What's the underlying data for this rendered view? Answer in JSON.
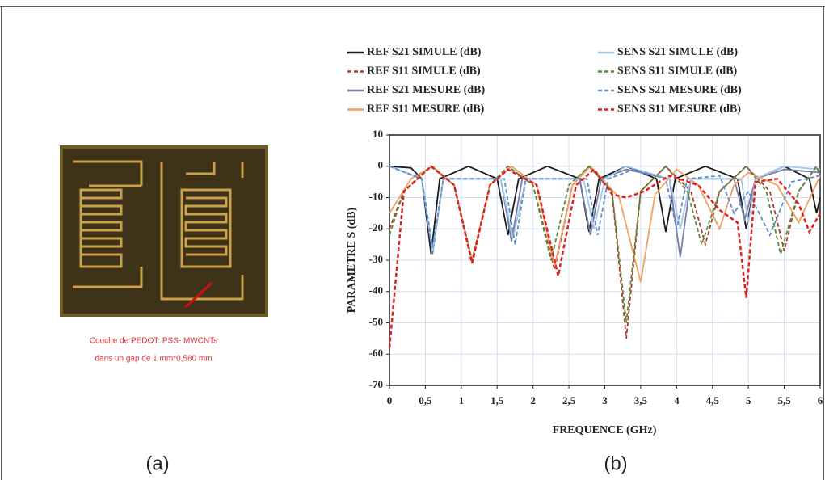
{
  "panel_a": {
    "caption_line1": "Couche  de PEDOT: PSS- MWCNTs",
    "caption_line2": "dans un gap de 1 mm*0,580 mm",
    "label": "(a)"
  },
  "panel_b": {
    "label": "(b)"
  },
  "chart_data": {
    "type": "line",
    "x_label": "FREQUENCE (GHz)",
    "y_label": "PARAMETRE S (dB)",
    "xlim": [
      0,
      6
    ],
    "ylim": [
      -70,
      10
    ],
    "grid": true,
    "xticks": [
      0,
      {
        "value": 0.5,
        "label": "0,5"
      },
      1,
      {
        "value": 1.5,
        "label": "1,5"
      },
      2,
      {
        "value": 2.5,
        "label": "2,5"
      },
      3,
      {
        "value": 3.5,
        "label": "3,5"
      },
      4,
      {
        "value": 4.5,
        "label": "4,5"
      },
      5,
      {
        "value": 5.5,
        "label": "5,5"
      },
      6
    ],
    "yticks": [
      10,
      0,
      -10,
      -20,
      -30,
      -40,
      -50,
      -60,
      -70
    ],
    "series": [
      {
        "name": "REF S21 SIMULE (dB)",
        "color": "#1a1a1a",
        "dashed": false,
        "x": [
          0,
          0.3,
          0.45,
          0.58,
          0.7,
          1.1,
          1.5,
          1.65,
          1.8,
          2.2,
          2.65,
          2.78,
          2.92,
          3.3,
          3.72,
          3.85,
          3.98,
          4.4,
          4.85,
          4.97,
          5.1,
          5.5,
          5.85,
          5.95,
          6
        ],
        "values": [
          0,
          -0.5,
          -4,
          -28,
          -4,
          0,
          -4,
          -22,
          -4,
          0,
          -4,
          -21,
          -4,
          0,
          -4,
          -21,
          -4,
          0,
          -4,
          -20,
          -4,
          0,
          -4,
          -15,
          -10
        ]
      },
      {
        "name": "REF S11 SIMULE (dB)",
        "color": "#b03a2e",
        "dashed": true,
        "x": [
          0,
          0.2,
          0.58,
          0.9,
          1.15,
          1.4,
          1.65,
          2.0,
          2.3,
          2.55,
          2.78,
          3.1,
          3.3,
          3.5,
          3.85,
          4.2,
          4.4,
          4.6,
          4.97,
          5.3,
          5.5,
          5.7,
          5.95,
          6
        ],
        "values": [
          -20,
          -8,
          0,
          -6,
          -31,
          -6,
          0,
          -6,
          -33,
          -6,
          0,
          -8,
          -55,
          -8,
          0,
          -8,
          -25,
          -8,
          0,
          -8,
          -27,
          -8,
          0,
          -3
        ]
      },
      {
        "name": "REF S21 MESURE (dB)",
        "color": "#7a7aa8",
        "dashed": false,
        "x": [
          0,
          0.45,
          0.6,
          0.75,
          1.55,
          1.7,
          1.85,
          2.65,
          2.8,
          2.95,
          3.3,
          3.9,
          4.05,
          4.2,
          4.8,
          4.95,
          5.1,
          5.5,
          6
        ],
        "values": [
          0,
          -4,
          -28,
          -4,
          -4,
          -24,
          -4,
          -4,
          -22,
          -4,
          -1,
          -4,
          -29,
          -4,
          -4,
          -17,
          -4,
          -1,
          -2
        ]
      },
      {
        "name": "REF S11 MESURE (dB)",
        "color": "#f0a060",
        "dashed": false,
        "x": [
          0,
          0.3,
          0.6,
          0.9,
          1.15,
          1.4,
          1.7,
          2.05,
          2.3,
          2.55,
          2.8,
          3.2,
          3.5,
          3.7,
          4.0,
          4.3,
          4.6,
          4.8,
          5.0,
          5.4,
          5.7,
          6
        ],
        "values": [
          -15,
          -4,
          0,
          -6,
          -30,
          -6,
          0,
          -6,
          -32,
          -6,
          0,
          -10,
          -37,
          -9,
          -1,
          -6,
          -20,
          -6,
          -2,
          -6,
          -18,
          -3
        ]
      },
      {
        "name": "SENS S21 SIMULE (dB)",
        "color": "#a8c8e8",
        "dashed": false,
        "x": [
          0,
          0.45,
          0.6,
          0.75,
          1.55,
          1.72,
          1.9,
          2.7,
          2.85,
          3.0,
          3.3,
          3.9,
          4.05,
          4.2,
          4.9,
          5.0,
          5.1,
          5.5,
          6
        ],
        "values": [
          0,
          -4,
          -27,
          -4,
          -4,
          -23,
          -4,
          -4,
          -20,
          -4,
          0,
          -4,
          -20,
          -4,
          -4,
          -18,
          -4,
          0,
          -1
        ]
      },
      {
        "name": "SENS S11 SIMULE (dB)",
        "color": "#5a8a3a",
        "dashed": true,
        "x": [
          0,
          0.2,
          0.58,
          0.9,
          1.15,
          1.4,
          1.65,
          2.0,
          2.25,
          2.5,
          2.78,
          3.1,
          3.3,
          3.5,
          3.85,
          4.15,
          4.35,
          4.6,
          4.97,
          5.25,
          5.45,
          5.7,
          5.95,
          6
        ],
        "values": [
          -22,
          -8,
          0,
          -6,
          -30,
          -6,
          0,
          -6,
          -30,
          -6,
          0,
          -8,
          -50,
          -8,
          0,
          -8,
          -25,
          -8,
          0,
          -8,
          -28,
          -8,
          0,
          -3
        ]
      },
      {
        "name": "SENS S21 MESURE (dB)",
        "color": "#5b8fc8",
        "dashed": true,
        "x": [
          0,
          0.45,
          0.6,
          0.75,
          1.6,
          1.75,
          1.9,
          2.75,
          2.9,
          3.05,
          3.4,
          3.85,
          4.0,
          4.15,
          4.6,
          4.8,
          5.0,
          5.3,
          5.6,
          6
        ],
        "values": [
          0,
          -4,
          -26,
          -4,
          -4,
          -25,
          -4,
          -4,
          -22,
          -4,
          -1,
          -4,
          -20,
          -4,
          -3,
          -15,
          -8,
          -22,
          -5,
          -3
        ]
      },
      {
        "name": "SENS S11 MESURE (dB)",
        "color": "#e02020",
        "dashed": true,
        "x": [
          0,
          0.2,
          0.58,
          0.9,
          1.15,
          1.4,
          1.65,
          2.05,
          2.35,
          2.6,
          2.85,
          3.1,
          3.3,
          3.55,
          3.9,
          4.3,
          4.6,
          4.85,
          4.97,
          5.1,
          5.4,
          5.7,
          5.85,
          6
        ],
        "values": [
          -58,
          -8,
          0,
          -6,
          -31,
          -6,
          -1,
          -6,
          -35,
          -6,
          -1,
          -9,
          -10,
          -8,
          -3,
          -6,
          -14,
          -18,
          -42,
          -5,
          -4,
          -12,
          -21,
          -15
        ]
      }
    ]
  }
}
